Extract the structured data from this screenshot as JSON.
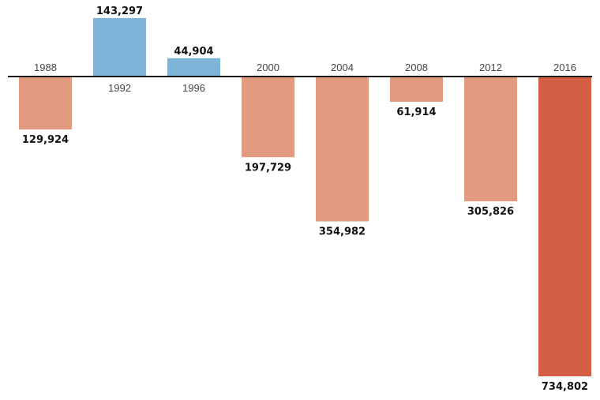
{
  "chart_data": {
    "type": "bar",
    "categories": [
      "1988",
      "1992",
      "1996",
      "2000",
      "2004",
      "2008",
      "2012",
      "2016"
    ],
    "values": [
      -129924,
      143297,
      44904,
      -197729,
      -354982,
      -61914,
      -305826,
      -734802
    ],
    "value_labels": [
      "129,924",
      "143,297",
      "44,904",
      "197,729",
      "354,982",
      "61,914",
      "305,826",
      "734,802"
    ],
    "ylim": [
      -734802,
      143297
    ],
    "grid": false,
    "title": "",
    "xlabel": "",
    "ylabel": "",
    "colors": {
      "positive": "#7fb4d8",
      "negative": "#e29a80",
      "highlight": "#d45e43",
      "baseline": "#1a1a1a"
    },
    "highlight_category": "2016"
  }
}
